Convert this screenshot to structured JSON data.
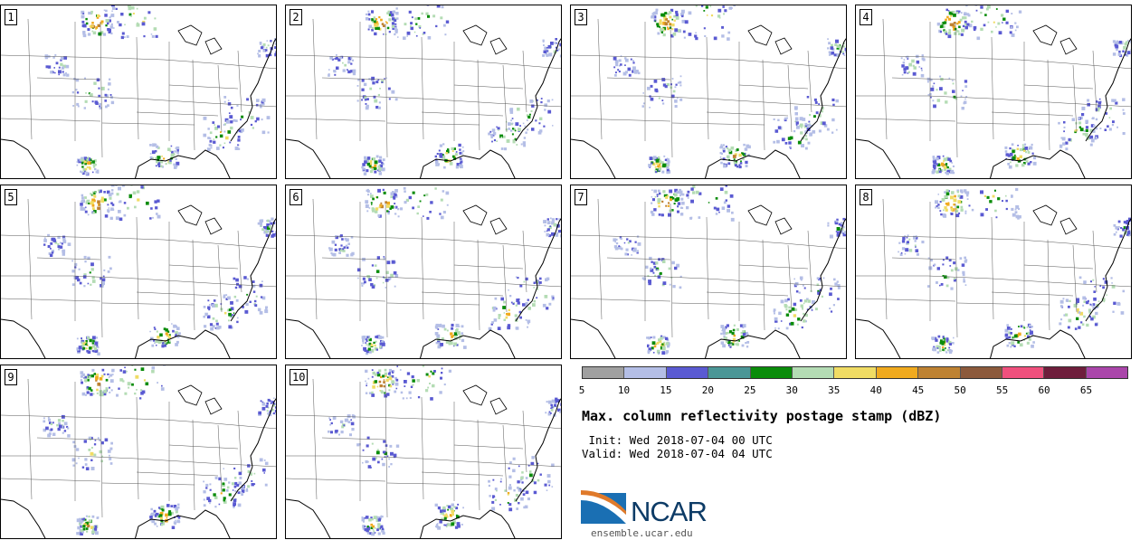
{
  "panels": [
    {
      "label": "1",
      "seed": 11
    },
    {
      "label": "2",
      "seed": 23
    },
    {
      "label": "3",
      "seed": 37
    },
    {
      "label": "4",
      "seed": 41
    },
    {
      "label": "5",
      "seed": 53
    },
    {
      "label": "6",
      "seed": 67
    },
    {
      "label": "7",
      "seed": 71
    },
    {
      "label": "8",
      "seed": 83
    },
    {
      "label": "9",
      "seed": 97
    },
    {
      "label": "10",
      "seed": 101
    }
  ],
  "colorbar": {
    "colors": [
      "#a0a0a0",
      "#b4bee6",
      "#5a5ad2",
      "#4b9696",
      "#0a8c0a",
      "#b4dcb4",
      "#f0dc64",
      "#f0aa1e",
      "#be8232",
      "#8c5a3c",
      "#f0507d",
      "#6e1e3c",
      "#aa46aa"
    ],
    "ticks": [
      "5",
      "10",
      "15",
      "20",
      "25",
      "30",
      "35",
      "40",
      "45",
      "50",
      "55",
      "60",
      "65"
    ]
  },
  "title": "Max. column reflectivity postage stamp (dBZ)",
  "init": " Init: Wed 2018-07-04 00 UTC",
  "valid": "Valid: Wed 2018-07-04 04 UTC",
  "logo": {
    "text": "NCAR",
    "url": "ensemble.ucar.edu",
    "brand_blue": "#0d3b66",
    "accent_orange": "#e07a2a"
  }
}
